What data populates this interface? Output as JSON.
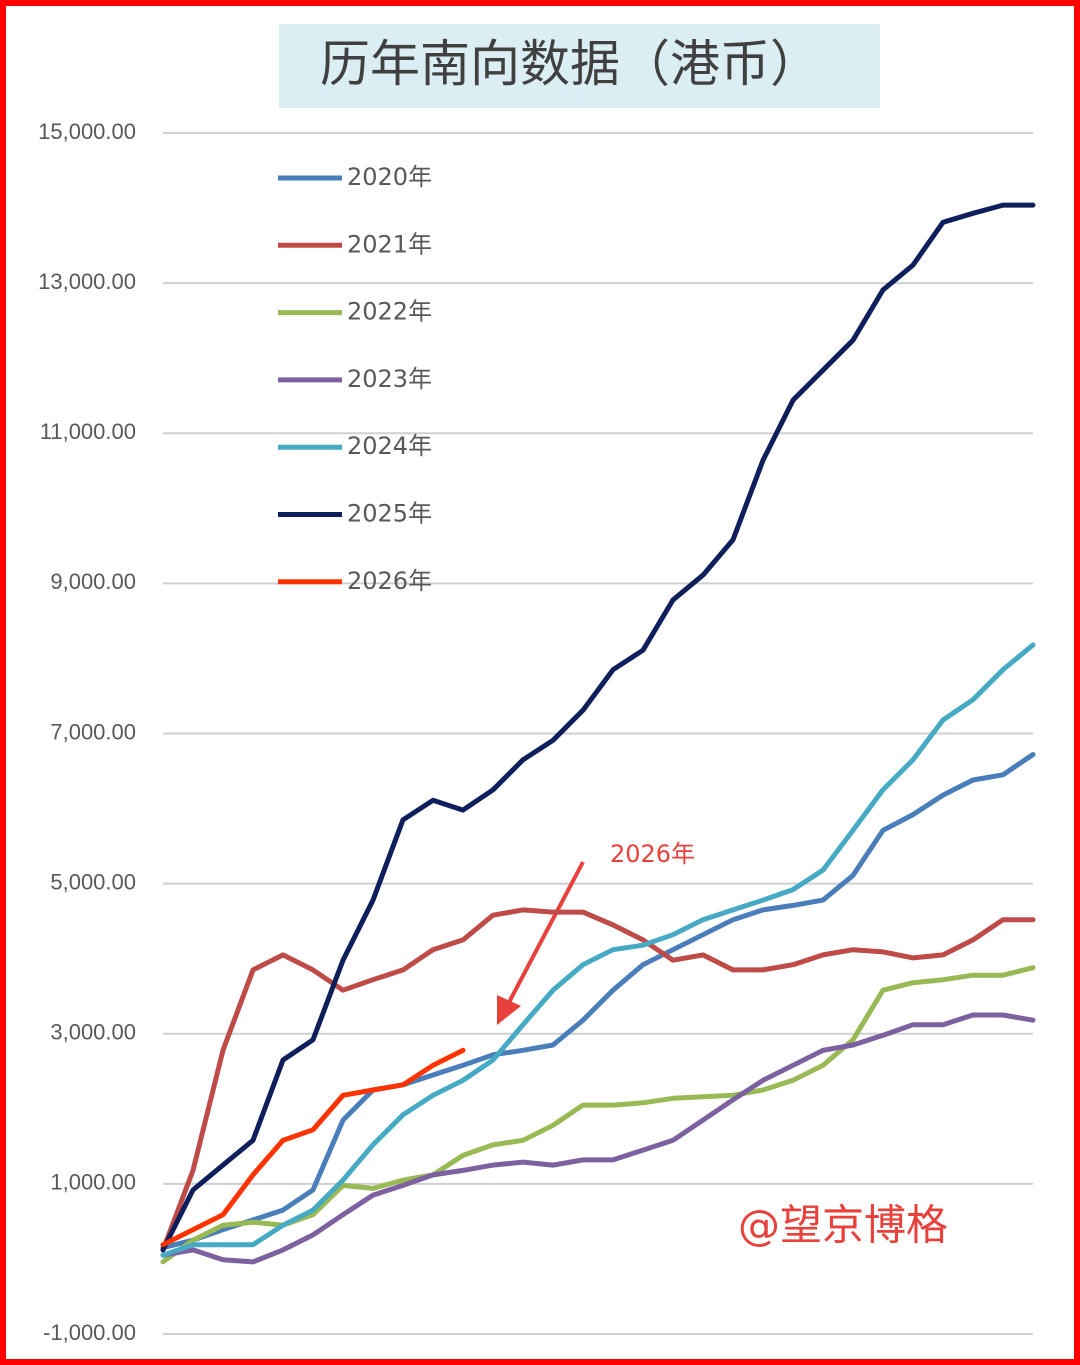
{
  "chart_data": {
    "type": "line",
    "title": "历年南向数据（港币）",
    "categories": [
      null,
      null,
      null,
      null,
      null,
      null,
      null,
      null,
      null,
      null,
      null,
      null,
      null,
      null,
      null,
      null,
      null,
      null,
      null,
      null,
      null,
      null,
      null,
      null,
      null,
      null,
      null,
      null,
      null,
      null
    ],
    "series": [
      {
        "name": "2020年",
        "color": "#4a7ebb",
        "values": [
          150,
          250,
          390,
          520,
          650,
          920,
          1850,
          2250,
          2320,
          2450,
          2580,
          2720,
          2780,
          2850,
          3180,
          3580,
          3920,
          4120,
          4320,
          4520,
          4650,
          4710,
          4780,
          5110,
          5710,
          5920,
          6180,
          6380,
          6450,
          6720
        ]
      },
      {
        "name": "2021年",
        "color": "#be4b48",
        "values": [
          120,
          1180,
          2780,
          3850,
          4050,
          3850,
          3580,
          3720,
          3850,
          4120,
          4250,
          4580,
          4650,
          4620,
          4620,
          4450,
          4250,
          3980,
          4050,
          3850,
          3850,
          3920,
          4050,
          4120,
          4090,
          4010,
          4050,
          4250,
          4520,
          4520
        ]
      },
      {
        "name": "2022年",
        "color": "#98b954",
        "values": [
          -40,
          250,
          450,
          490,
          450,
          590,
          980,
          940,
          1050,
          1120,
          1380,
          1520,
          1580,
          1780,
          2050,
          2050,
          2080,
          2140,
          2160,
          2180,
          2250,
          2380,
          2580,
          2920,
          3580,
          3680,
          3720,
          3780,
          3780,
          3880
        ]
      },
      {
        "name": "2023年",
        "color": "#7d60a0",
        "values": [
          50,
          120,
          -10,
          -40,
          120,
          320,
          590,
          850,
          980,
          1120,
          1180,
          1250,
          1290,
          1250,
          1320,
          1320,
          1450,
          1580,
          1850,
          2120,
          2380,
          2580,
          2780,
          2850,
          2980,
          3120,
          3120,
          3250,
          3250,
          3180
        ]
      },
      {
        "name": "2024年",
        "color": "#46aac5",
        "values": [
          50,
          190,
          190,
          190,
          450,
          650,
          1050,
          1520,
          1920,
          2180,
          2380,
          2650,
          3120,
          3580,
          3920,
          4120,
          4180,
          4320,
          4520,
          4650,
          4780,
          4920,
          5180,
          5710,
          6250,
          6650,
          7180,
          7450,
          7850,
          8180
        ]
      },
      {
        "name": "2025年",
        "color": "#0f1f5c",
        "values": [
          120,
          920,
          1250,
          1580,
          2650,
          2920,
          3980,
          4780,
          5850,
          6110,
          5980,
          6250,
          6650,
          6910,
          7310,
          7850,
          8110,
          8780,
          9110,
          9580,
          10640,
          11440,
          11840,
          12240,
          12910,
          13240,
          13810,
          13930,
          14040,
          14040
        ]
      },
      {
        "name": "2026年",
        "color": "#ff3300",
        "values": [
          190,
          390,
          590,
          1120,
          1580,
          1720,
          2180,
          2250,
          2320,
          2580,
          2780,
          null,
          null,
          null,
          null,
          null,
          null,
          null,
          null,
          null,
          null,
          null,
          null,
          null,
          null,
          null,
          null,
          null,
          null,
          null
        ]
      }
    ],
    "ylim": [
      -1000,
      15000
    ],
    "yticks": [
      {
        "value": -1000,
        "label": "-1,000.00"
      },
      {
        "value": 1000,
        "label": "1,000.00"
      },
      {
        "value": 3000,
        "label": "3,000.00"
      },
      {
        "value": 5000,
        "label": "5,000.00"
      },
      {
        "value": 7000,
        "label": "7,000.00"
      },
      {
        "value": 9000,
        "label": "9,000.00"
      },
      {
        "value": 11000,
        "label": "11,000.00"
      },
      {
        "value": 13000,
        "label": "13,000.00"
      },
      {
        "value": 15000,
        "label": "15,000.00"
      }
    ],
    "grid": true,
    "legend": "upper left",
    "annotation": "2026年"
  },
  "watermark": "@望京博格"
}
